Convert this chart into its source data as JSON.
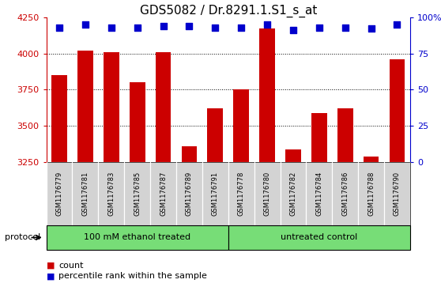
{
  "title": "GDS5082 / Dr.8291.1.S1_s_at",
  "samples": [
    "GSM1176779",
    "GSM1176781",
    "GSM1176783",
    "GSM1176785",
    "GSM1176787",
    "GSM1176789",
    "GSM1176791",
    "GSM1176778",
    "GSM1176780",
    "GSM1176782",
    "GSM1176784",
    "GSM1176786",
    "GSM1176788",
    "GSM1176790"
  ],
  "counts": [
    3850,
    4020,
    4010,
    3800,
    4010,
    3360,
    3620,
    3750,
    4170,
    3340,
    3590,
    3620,
    3290,
    3960
  ],
  "percentile_ranks": [
    93,
    95,
    93,
    93,
    94,
    94,
    93,
    93,
    95,
    91,
    93,
    93,
    92,
    95
  ],
  "group1_label": "100 mM ethanol treated",
  "group2_label": "untreated control",
  "group1_count": 7,
  "group2_count": 7,
  "bar_color": "#cc0000",
  "dot_color": "#0000cc",
  "ylim_left": [
    3250,
    4250
  ],
  "ylim_right": [
    0,
    100
  ],
  "yticks_left": [
    3250,
    3500,
    3750,
    4000,
    4250
  ],
  "yticks_right": [
    0,
    25,
    50,
    75,
    100
  ],
  "grid_lines": [
    3500,
    3750,
    4000
  ],
  "protocol_label": "protocol",
  "legend_count_label": "count",
  "legend_pct_label": "percentile rank within the sample",
  "bar_width": 0.6,
  "tick_bg_color": "#d3d3d3",
  "group_bg_color": "#77dd77",
  "right_axis_color": "#0000cc",
  "left_axis_color": "#cc0000",
  "title_fontsize": 11,
  "axis_fontsize": 8,
  "sample_fontsize": 6,
  "legend_fontsize": 8,
  "protocol_fontsize": 8
}
